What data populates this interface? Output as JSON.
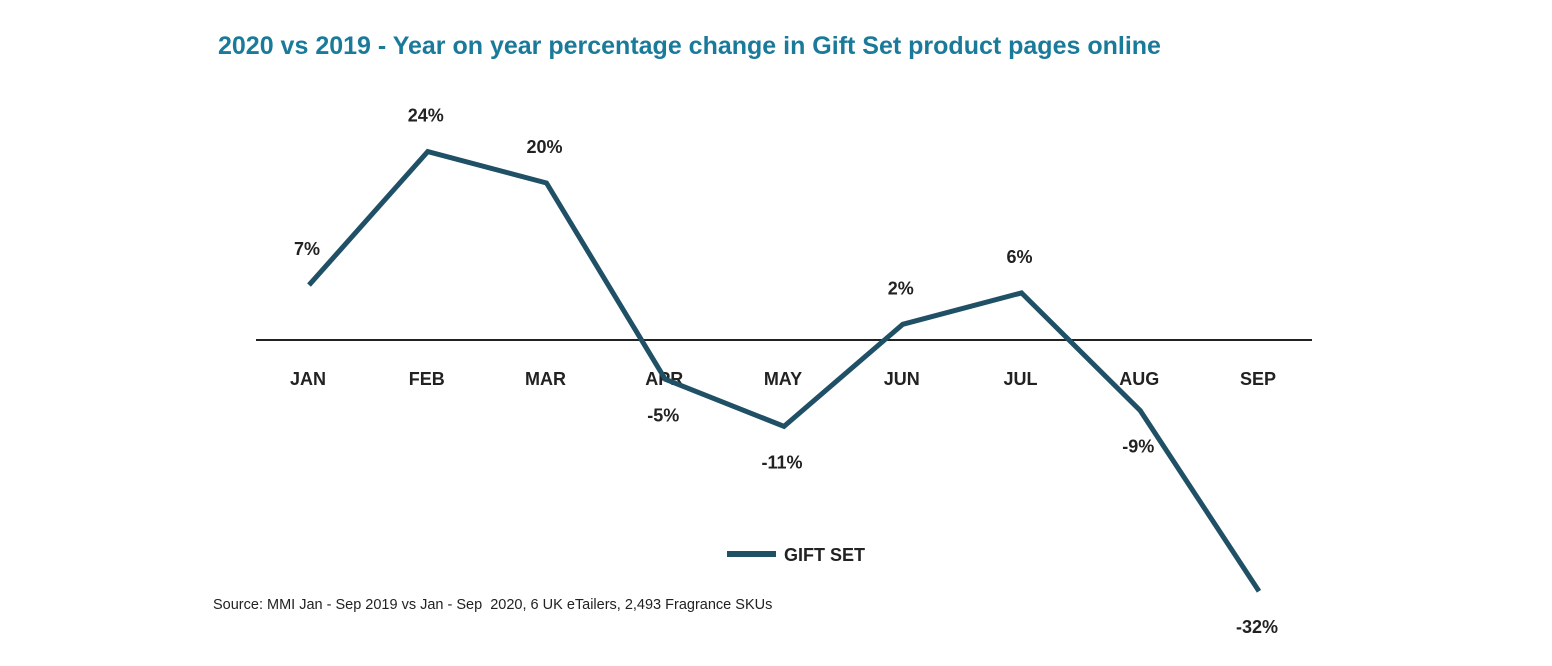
{
  "title": "2020 vs 2019 - Year on year percentage change in Gift Set product pages online",
  "source": "Source: MMI Jan - Sep 2019 vs Jan - Sep  2020, 6 UK eTailers, 2,493 Fragrance SKUs",
  "chart_data": {
    "type": "line",
    "categories": [
      "JAN",
      "FEB",
      "MAR",
      "APR",
      "MAY",
      "JUN",
      "JUL",
      "AUG",
      "SEP"
    ],
    "series": [
      {
        "name": "GIFT SET",
        "values": [
          7,
          24,
          20,
          -5,
          -11,
          2,
          6,
          -9,
          -32
        ],
        "labels": [
          "7%",
          "24%",
          "20%",
          "-5%",
          "-11%",
          "2%",
          "6%",
          "-9%",
          "-32%"
        ],
        "color": "#1f5066"
      }
    ],
    "baseline": 0,
    "grid": false,
    "legend_position": "bottom"
  }
}
